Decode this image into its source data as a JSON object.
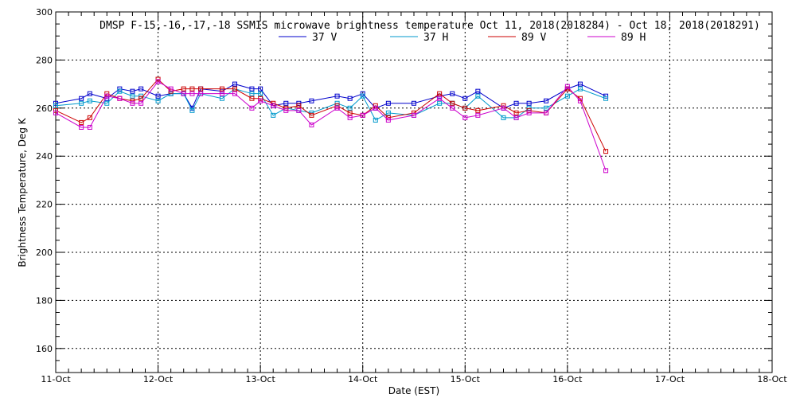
{
  "chart_data": {
    "type": "line",
    "title": "DMSP F-15,-16,-17,-18 SSMIS microwave brightness temperature Oct 11, 2018(2018284) - Oct 18, 2018(2018291)",
    "xlabel": "Date (EST)",
    "ylabel": "Brightness Temperature, Deg K",
    "xlim": [
      "2018-10-11T00:00",
      "2018-10-18T00:00"
    ],
    "ylim": [
      150,
      300
    ],
    "x_ticks": [
      "11-Oct",
      "12-Oct",
      "13-Oct",
      "14-Oct",
      "15-Oct",
      "16-Oct",
      "17-Oct",
      "18-Oct"
    ],
    "y_ticks": [
      160,
      180,
      200,
      220,
      240,
      260,
      280,
      300
    ],
    "grid": true,
    "legend_position": "top",
    "series": [
      {
        "name": "37 V",
        "color": "#0000cc",
        "points": [
          [
            "2018-10-11T00:00",
            262
          ],
          [
            "2018-10-11T06:00",
            264
          ],
          [
            "2018-10-11T08:00",
            266
          ],
          [
            "2018-10-11T12:00",
            264
          ],
          [
            "2018-10-11T15:00",
            268
          ],
          [
            "2018-10-11T18:00",
            267
          ],
          [
            "2018-10-11T20:00",
            268
          ],
          [
            "2018-10-12T00:00",
            265
          ],
          [
            "2018-10-12T03:00",
            266
          ],
          [
            "2018-10-12T06:00",
            266
          ],
          [
            "2018-10-12T08:00",
            260
          ],
          [
            "2018-10-12T10:00",
            268
          ],
          [
            "2018-10-12T15:00",
            267
          ],
          [
            "2018-10-12T18:00",
            270
          ],
          [
            "2018-10-12T22:00",
            268
          ],
          [
            "2018-10-13T00:00",
            268
          ],
          [
            "2018-10-13T03:00",
            261
          ],
          [
            "2018-10-13T06:00",
            262
          ],
          [
            "2018-10-13T09:00",
            262
          ],
          [
            "2018-10-13T12:00",
            263
          ],
          [
            "2018-10-13T18:00",
            265
          ],
          [
            "2018-10-13T21:00",
            264
          ],
          [
            "2018-10-14T00:00",
            266
          ],
          [
            "2018-10-14T03:00",
            260
          ],
          [
            "2018-10-14T06:00",
            262
          ],
          [
            "2018-10-14T12:00",
            262
          ],
          [
            "2018-10-14T18:00",
            265
          ],
          [
            "2018-10-14T21:00",
            266
          ],
          [
            "2018-10-15T00:00",
            264
          ],
          [
            "2018-10-15T03:00",
            267
          ],
          [
            "2018-10-15T09:00",
            260
          ],
          [
            "2018-10-15T12:00",
            262
          ],
          [
            "2018-10-15T15:00",
            262
          ],
          [
            "2018-10-15T19:00",
            263
          ],
          [
            "2018-10-16T00:00",
            268
          ],
          [
            "2018-10-16T03:00",
            270
          ],
          [
            "2018-10-16T09:00",
            265
          ]
        ]
      },
      {
        "name": "37 H",
        "color": "#0099cc",
        "points": [
          [
            "2018-10-11T00:00",
            261
          ],
          [
            "2018-10-11T06:00",
            262
          ],
          [
            "2018-10-11T08:00",
            263
          ],
          [
            "2018-10-11T12:00",
            262
          ],
          [
            "2018-10-11T15:00",
            267
          ],
          [
            "2018-10-11T18:00",
            265
          ],
          [
            "2018-10-11T20:00",
            265
          ],
          [
            "2018-10-12T00:00",
            263
          ],
          [
            "2018-10-12T03:00",
            266
          ],
          [
            "2018-10-12T06:00",
            266
          ],
          [
            "2018-10-12T08:00",
            259
          ],
          [
            "2018-10-12T10:00",
            266
          ],
          [
            "2018-10-12T15:00",
            264
          ],
          [
            "2018-10-12T18:00",
            268
          ],
          [
            "2018-10-12T22:00",
            266
          ],
          [
            "2018-10-13T00:00",
            266
          ],
          [
            "2018-10-13T03:00",
            257
          ],
          [
            "2018-10-13T06:00",
            260
          ],
          [
            "2018-10-13T09:00",
            259
          ],
          [
            "2018-10-13T12:00",
            258
          ],
          [
            "2018-10-13T18:00",
            262
          ],
          [
            "2018-10-13T21:00",
            260
          ],
          [
            "2018-10-14T00:00",
            265
          ],
          [
            "2018-10-14T03:00",
            255
          ],
          [
            "2018-10-14T06:00",
            258
          ],
          [
            "2018-10-14T12:00",
            257
          ],
          [
            "2018-10-14T18:00",
            262
          ],
          [
            "2018-10-14T21:00",
            262
          ],
          [
            "2018-10-15T00:00",
            260
          ],
          [
            "2018-10-15T03:00",
            265
          ],
          [
            "2018-10-15T09:00",
            256
          ],
          [
            "2018-10-15T12:00",
            256
          ],
          [
            "2018-10-15T15:00",
            260
          ],
          [
            "2018-10-15T19:00",
            260
          ],
          [
            "2018-10-16T00:00",
            265
          ],
          [
            "2018-10-16T03:00",
            268
          ],
          [
            "2018-10-16T09:00",
            264
          ]
        ]
      },
      {
        "name": "89 V",
        "color": "#cc0000",
        "points": [
          [
            "2018-10-11T00:00",
            259
          ],
          [
            "2018-10-11T06:00",
            254
          ],
          [
            "2018-10-11T08:00",
            256
          ],
          [
            "2018-10-11T12:00",
            266
          ],
          [
            "2018-10-11T15:00",
            264
          ],
          [
            "2018-10-11T18:00",
            263
          ],
          [
            "2018-10-11T20:00",
            264
          ],
          [
            "2018-10-12T00:00",
            272
          ],
          [
            "2018-10-12T03:00",
            267
          ],
          [
            "2018-10-12T06:00",
            268
          ],
          [
            "2018-10-12T08:00",
            268
          ],
          [
            "2018-10-12T10:00",
            268
          ],
          [
            "2018-10-12T15:00",
            268
          ],
          [
            "2018-10-12T18:00",
            268
          ],
          [
            "2018-10-12T22:00",
            264
          ],
          [
            "2018-10-13T00:00",
            264
          ],
          [
            "2018-10-13T03:00",
            262
          ],
          [
            "2018-10-13T06:00",
            260
          ],
          [
            "2018-10-13T09:00",
            261
          ],
          [
            "2018-10-13T12:00",
            257
          ],
          [
            "2018-10-13T18:00",
            261
          ],
          [
            "2018-10-13T21:00",
            258
          ],
          [
            "2018-10-14T00:00",
            257
          ],
          [
            "2018-10-14T03:00",
            261
          ],
          [
            "2018-10-14T06:00",
            256
          ],
          [
            "2018-10-14T12:00",
            258
          ],
          [
            "2018-10-14T18:00",
            266
          ],
          [
            "2018-10-14T21:00",
            262
          ],
          [
            "2018-10-15T00:00",
            260
          ],
          [
            "2018-10-15T03:00",
            259
          ],
          [
            "2018-10-15T09:00",
            261
          ],
          [
            "2018-10-15T12:00",
            258
          ],
          [
            "2018-10-15T15:00",
            259
          ],
          [
            "2018-10-15T19:00",
            258
          ],
          [
            "2018-10-16T00:00",
            268
          ],
          [
            "2018-10-16T03:00",
            264
          ],
          [
            "2018-10-16T09:00",
            242
          ]
        ]
      },
      {
        "name": "89 H",
        "color": "#cc00cc",
        "points": [
          [
            "2018-10-11T00:00",
            258
          ],
          [
            "2018-10-11T06:00",
            252
          ],
          [
            "2018-10-11T08:00",
            252
          ],
          [
            "2018-10-11T12:00",
            265
          ],
          [
            "2018-10-11T15:00",
            264
          ],
          [
            "2018-10-11T18:00",
            262
          ],
          [
            "2018-10-11T20:00",
            262
          ],
          [
            "2018-10-12T00:00",
            271
          ],
          [
            "2018-10-12T03:00",
            268
          ],
          [
            "2018-10-12T06:00",
            266
          ],
          [
            "2018-10-12T08:00",
            266
          ],
          [
            "2018-10-12T10:00",
            266
          ],
          [
            "2018-10-12T15:00",
            266
          ],
          [
            "2018-10-12T18:00",
            266
          ],
          [
            "2018-10-12T22:00",
            260
          ],
          [
            "2018-10-13T00:00",
            263
          ],
          [
            "2018-10-13T03:00",
            261
          ],
          [
            "2018-10-13T06:00",
            259
          ],
          [
            "2018-10-13T09:00",
            259
          ],
          [
            "2018-10-13T12:00",
            253
          ],
          [
            "2018-10-13T18:00",
            260
          ],
          [
            "2018-10-13T21:00",
            256
          ],
          [
            "2018-10-14T00:00",
            257
          ],
          [
            "2018-10-14T03:00",
            260
          ],
          [
            "2018-10-14T06:00",
            255
          ],
          [
            "2018-10-14T12:00",
            257
          ],
          [
            "2018-10-14T18:00",
            264
          ],
          [
            "2018-10-14T21:00",
            260
          ],
          [
            "2018-10-15T00:00",
            256
          ],
          [
            "2018-10-15T03:00",
            257
          ],
          [
            "2018-10-15T09:00",
            260
          ],
          [
            "2018-10-15T12:00",
            256
          ],
          [
            "2018-10-15T15:00",
            258
          ],
          [
            "2018-10-15T19:00",
            258
          ],
          [
            "2018-10-16T00:00",
            269
          ],
          [
            "2018-10-16T03:00",
            263
          ],
          [
            "2018-10-16T09:00",
            234
          ]
        ]
      }
    ]
  }
}
